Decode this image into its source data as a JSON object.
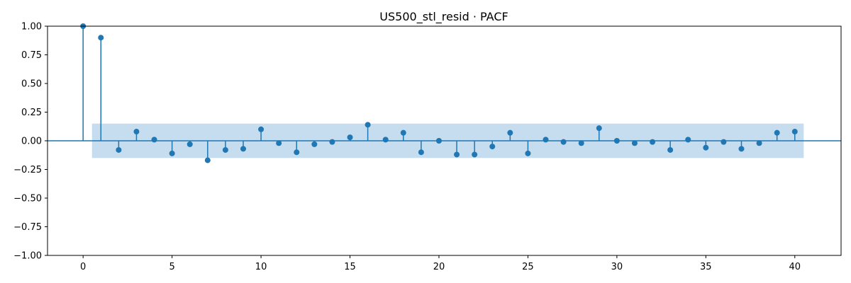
{
  "chart_data": {
    "type": "stem",
    "title": "US500_stl_resid · PACF",
    "xlabel": "",
    "ylabel": "",
    "xlim": [
      -2,
      42.6
    ],
    "ylim": [
      -1.0,
      1.0
    ],
    "x_ticks": [
      0,
      5,
      10,
      15,
      20,
      25,
      30,
      35,
      40
    ],
    "x_tick_labels": [
      "0",
      "5",
      "10",
      "15",
      "20",
      "25",
      "30",
      "35",
      "40"
    ],
    "y_ticks": [
      -1.0,
      -0.75,
      -0.5,
      -0.25,
      0.0,
      0.25,
      0.5,
      0.75,
      1.0
    ],
    "y_tick_labels": [
      "−1.00",
      "−0.75",
      "−0.50",
      "−0.25",
      "0.00",
      "0.25",
      "0.50",
      "0.75",
      "1.00"
    ],
    "grid": false,
    "confidence_band": {
      "x_start": 0.5,
      "x_end": 40.5,
      "value": 0.15
    },
    "colors": {
      "series": "#1f77b4",
      "band": "#c6dcef",
      "axes": "#000000"
    },
    "series": [
      {
        "lags": [
          0,
          1,
          2,
          3,
          4,
          5,
          6,
          7,
          8,
          9,
          10,
          11,
          12,
          13,
          14,
          15,
          16,
          17,
          18,
          19,
          20,
          21,
          22,
          23,
          24,
          25,
          26,
          27,
          28,
          29,
          30,
          31,
          32,
          33,
          34,
          35,
          36,
          37,
          38,
          39,
          40
        ],
        "values": [
          1.0,
          0.9,
          -0.08,
          0.08,
          0.01,
          -0.11,
          -0.03,
          -0.17,
          -0.08,
          -0.07,
          0.1,
          -0.02,
          -0.1,
          -0.03,
          -0.01,
          0.03,
          0.14,
          0.01,
          0.07,
          -0.1,
          0.0,
          -0.12,
          -0.12,
          -0.05,
          0.07,
          -0.11,
          0.01,
          -0.01,
          -0.02,
          0.11,
          0.0,
          -0.02,
          -0.01,
          -0.08,
          0.01,
          -0.06,
          -0.01,
          -0.07,
          -0.02,
          0.07,
          0.08
        ]
      }
    ]
  }
}
